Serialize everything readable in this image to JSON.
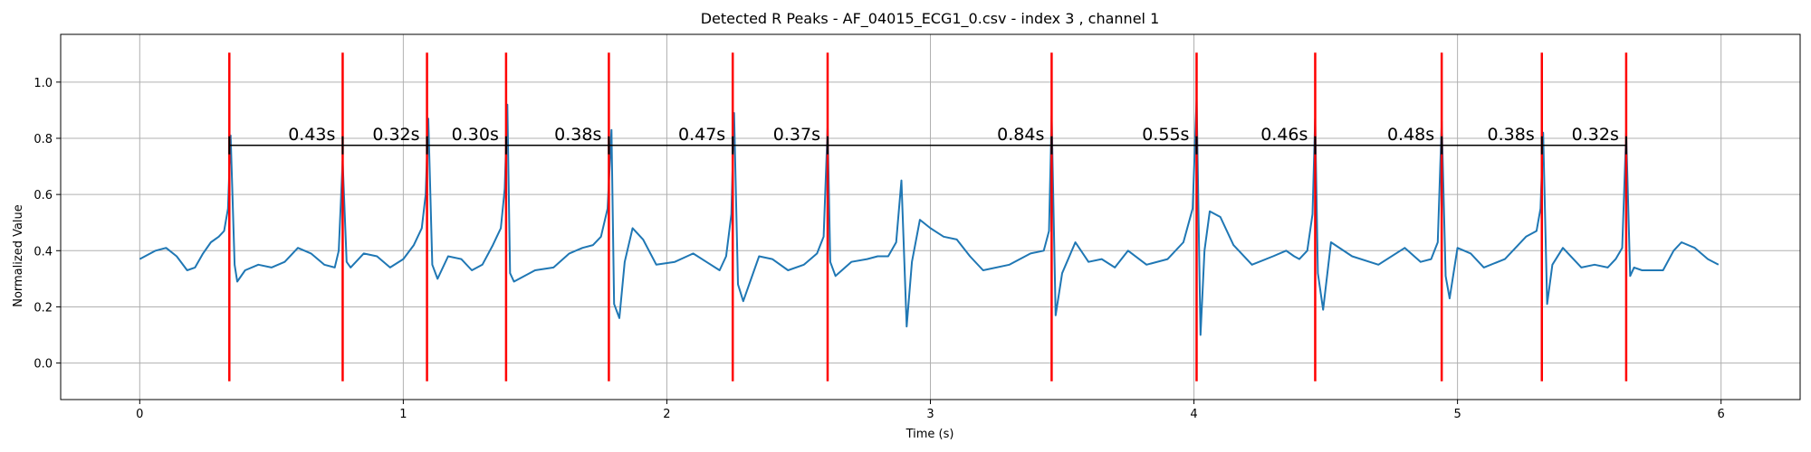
{
  "chart_data": {
    "type": "line",
    "title": "Detected R Peaks - AF_04015_ECG1_0.csv - index 3 , channel 1",
    "xlabel": "Time (s)",
    "ylabel": "Normalized Value",
    "xlim": [
      -0.3,
      6.3
    ],
    "ylim": [
      -0.13,
      1.17
    ],
    "x_ticks": [
      0,
      1,
      2,
      3,
      4,
      5,
      6
    ],
    "x_tick_labels": [
      "0",
      "1",
      "2",
      "3",
      "4",
      "5",
      "6"
    ],
    "y_ticks": [
      0.0,
      0.2,
      0.4,
      0.6,
      0.8,
      1.0
    ],
    "y_tick_labels": [
      "0.0",
      "0.2",
      "0.4",
      "0.6",
      "0.8",
      "1.0"
    ],
    "grid": true,
    "colors": {
      "signal": "#1f77b4",
      "peaks": "#ff0000",
      "intervals": "#000000"
    },
    "peak_line_range": [
      -0.065,
      1.105
    ],
    "interval_line_y": 0.775,
    "r_peaks": [
      0.34,
      0.77,
      1.09,
      1.39,
      1.78,
      2.25,
      2.61,
      3.46,
      4.01,
      4.46,
      4.94,
      5.32,
      5.64
    ],
    "interval_labels": [
      "0.43s",
      "0.32s",
      "0.30s",
      "0.38s",
      "0.47s",
      "0.37s",
      "0.84s",
      "0.55s",
      "0.46s",
      "0.48s",
      "0.38s",
      "0.32s"
    ],
    "signal": {
      "x": [
        0.0,
        0.02,
        0.06,
        0.1,
        0.14,
        0.18,
        0.21,
        0.24,
        0.27,
        0.3,
        0.32,
        0.335,
        0.345,
        0.36,
        0.37,
        0.4,
        0.45,
        0.5,
        0.55,
        0.6,
        0.65,
        0.7,
        0.74,
        0.755,
        0.77,
        0.785,
        0.8,
        0.85,
        0.9,
        0.95,
        1.0,
        1.04,
        1.07,
        1.085,
        1.095,
        1.11,
        1.13,
        1.17,
        1.22,
        1.26,
        1.3,
        1.34,
        1.37,
        1.385,
        1.395,
        1.405,
        1.42,
        1.5,
        1.57,
        1.63,
        1.68,
        1.72,
        1.75,
        1.775,
        1.79,
        1.8,
        1.82,
        1.84,
        1.87,
        1.91,
        1.96,
        2.03,
        2.1,
        2.15,
        2.2,
        2.225,
        2.245,
        2.255,
        2.27,
        2.29,
        2.35,
        2.4,
        2.46,
        2.52,
        2.57,
        2.595,
        2.61,
        2.62,
        2.64,
        2.7,
        2.76,
        2.8,
        2.84,
        2.87,
        2.89,
        2.91,
        2.93,
        2.96,
        3.0,
        3.05,
        3.1,
        3.15,
        3.2,
        3.3,
        3.38,
        3.43,
        3.45,
        3.46,
        3.475,
        3.5,
        3.55,
        3.6,
        3.65,
        3.7,
        3.75,
        3.82,
        3.9,
        3.96,
        3.995,
        4.01,
        4.025,
        4.04,
        4.06,
        4.1,
        4.15,
        4.22,
        4.3,
        4.35,
        4.38,
        4.4,
        4.43,
        4.45,
        4.46,
        4.47,
        4.49,
        4.52,
        4.6,
        4.7,
        4.8,
        4.86,
        4.9,
        4.925,
        4.94,
        4.955,
        4.97,
        5.0,
        5.05,
        5.1,
        5.18,
        5.26,
        5.3,
        5.315,
        5.325,
        5.34,
        5.36,
        5.4,
        5.47,
        5.52,
        5.57,
        5.6,
        5.625,
        5.64,
        5.655,
        5.67,
        5.7,
        5.78,
        5.82,
        5.85,
        5.9,
        5.95,
        5.99
      ],
      "y": [
        0.37,
        0.38,
        0.4,
        0.41,
        0.38,
        0.33,
        0.34,
        0.39,
        0.43,
        0.45,
        0.47,
        0.55,
        0.81,
        0.35,
        0.29,
        0.33,
        0.35,
        0.34,
        0.36,
        0.41,
        0.39,
        0.35,
        0.34,
        0.4,
        0.72,
        0.36,
        0.34,
        0.39,
        0.38,
        0.34,
        0.37,
        0.42,
        0.48,
        0.6,
        0.87,
        0.35,
        0.3,
        0.38,
        0.37,
        0.33,
        0.35,
        0.42,
        0.48,
        0.62,
        0.92,
        0.32,
        0.29,
        0.33,
        0.34,
        0.39,
        0.41,
        0.42,
        0.45,
        0.55,
        0.83,
        0.21,
        0.16,
        0.36,
        0.48,
        0.44,
        0.35,
        0.36,
        0.39,
        0.36,
        0.33,
        0.38,
        0.53,
        0.89,
        0.28,
        0.22,
        0.38,
        0.37,
        0.33,
        0.35,
        0.39,
        0.45,
        0.84,
        0.36,
        0.31,
        0.36,
        0.37,
        0.38,
        0.38,
        0.43,
        0.65,
        0.13,
        0.36,
        0.51,
        0.48,
        0.45,
        0.44,
        0.38,
        0.33,
        0.35,
        0.39,
        0.4,
        0.47,
        0.88,
        0.17,
        0.32,
        0.43,
        0.36,
        0.37,
        0.34,
        0.4,
        0.35,
        0.37,
        0.43,
        0.55,
        0.94,
        0.1,
        0.4,
        0.54,
        0.52,
        0.42,
        0.35,
        0.38,
        0.4,
        0.38,
        0.37,
        0.4,
        0.53,
        0.87,
        0.32,
        0.19,
        0.43,
        0.38,
        0.35,
        0.41,
        0.36,
        0.37,
        0.43,
        0.86,
        0.31,
        0.23,
        0.41,
        0.39,
        0.34,
        0.37,
        0.45,
        0.47,
        0.55,
        0.82,
        0.21,
        0.35,
        0.41,
        0.34,
        0.35,
        0.34,
        0.37,
        0.41,
        0.82,
        0.31,
        0.34,
        0.33,
        0.33,
        0.4,
        0.43,
        0.41,
        0.37,
        0.35
      ]
    }
  }
}
